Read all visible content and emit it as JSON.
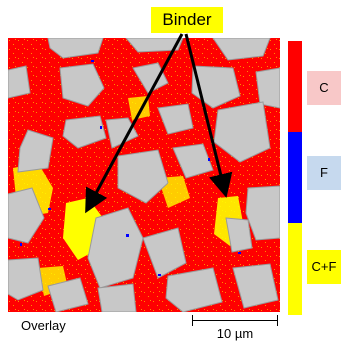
{
  "callout": {
    "label": "Binder"
  },
  "legend": {
    "items": [
      {
        "label": "C",
        "color": "#ff0000",
        "label_bg": "#f8c8c8"
      },
      {
        "label": "F",
        "color": "#0000ff",
        "label_bg": "#c6d9ee"
      },
      {
        "label": "C+F",
        "color": "#ffff00",
        "label_bg": "#ffff00"
      }
    ]
  },
  "caption": "Overlay",
  "scale_bar": {
    "label": "10 µm"
  },
  "colors": {
    "matrix": "#ff0000",
    "particle": "#c8c8c8",
    "binder": "#ffff00",
    "minor_phase": "#0000ff"
  },
  "icons": [
    "arrow-icon"
  ]
}
